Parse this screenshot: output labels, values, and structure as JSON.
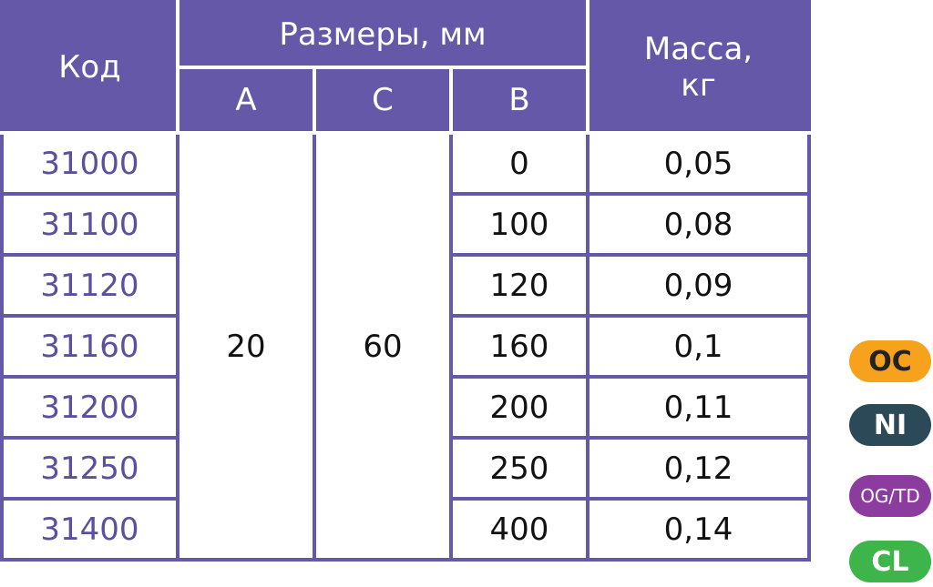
{
  "table": {
    "headers": {
      "code": "Код",
      "sizes": "Размеры, мм",
      "a": "A",
      "c": "C",
      "b": "B",
      "mass": [
        "Масса,",
        "кг"
      ]
    },
    "a": "20",
    "c": "60",
    "rows": [
      [
        "31000",
        "0",
        "0,05"
      ],
      [
        "31100",
        "100",
        "0,08"
      ],
      [
        "31120",
        "120",
        "0,09"
      ],
      [
        "31160",
        "160",
        "0,1"
      ],
      [
        "31200",
        "200",
        "0,11"
      ],
      [
        "31250",
        "250",
        "0,12"
      ],
      [
        "31400",
        "400",
        "0,14"
      ]
    ]
  },
  "badges": [
    "OC",
    "NI",
    "OG/TD",
    "CL"
  ]
}
